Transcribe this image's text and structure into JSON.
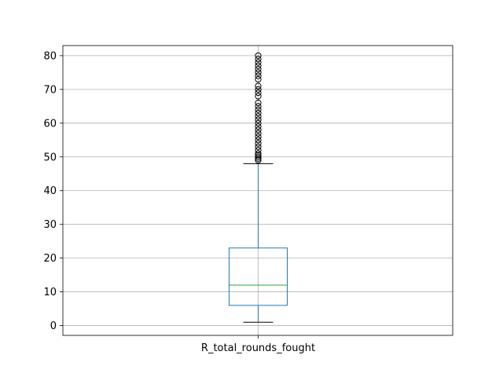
{
  "chart_data": {
    "type": "boxplot",
    "title": "",
    "xlabel": "",
    "ylabel": "",
    "categories": [
      "R_total_rounds_fought"
    ],
    "ylim": [
      -2.9,
      83.0
    ],
    "yticks": [
      0,
      10,
      20,
      30,
      40,
      50,
      60,
      70,
      80
    ],
    "grid": true,
    "box": {
      "whisker_low": 1,
      "q1": 6,
      "median": 12,
      "q3": 23,
      "whisker_high": 48
    },
    "outliers": [
      49,
      49.5,
      50,
      50.5,
      51,
      52,
      53,
      54,
      55,
      56,
      57,
      58,
      59,
      60,
      61,
      62,
      63,
      64,
      65,
      66,
      68,
      69,
      70,
      71,
      73,
      74,
      75,
      76,
      77,
      78,
      79,
      80
    ],
    "colors": {
      "box": "#1f77b4",
      "median": "#2ca02c",
      "whisker_cap": "#000000",
      "grid": "#b0b0b0",
      "outlier": "#000000"
    }
  }
}
